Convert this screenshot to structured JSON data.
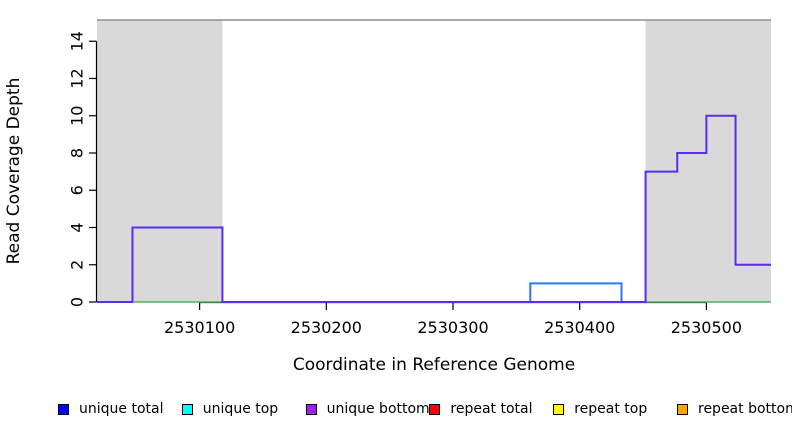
{
  "chart_data": {
    "type": "line",
    "subtype": "step-coverage",
    "title": "",
    "xlabel": "Coordinate in Reference Genome",
    "ylabel": "Read Coverage Depth",
    "xlim": [
      2530019,
      2530551
    ],
    "ylim": [
      0,
      15.14
    ],
    "x_ticks": [
      2530100,
      2530200,
      2530300,
      2530400,
      2530500
    ],
    "y_ticks": [
      0,
      2,
      4,
      6,
      8,
      10,
      12,
      14
    ],
    "grid": "off",
    "background_color": "#ffffff",
    "shaded_region_color": "#d9d9d9",
    "plot_box_top_color": "#909090",
    "shaded_regions": [
      {
        "from": 2530019,
        "to": 2530118
      },
      {
        "from": 2530452,
        "to": 2530551
      }
    ],
    "series": [
      {
        "name": "zero-depth baseline (green)",
        "display_color": "#55b060",
        "stroke_width": 1.6,
        "drop_ends": false,
        "segments": [
          {
            "from": 2530048,
            "to": 2530118,
            "depth": 0
          },
          {
            "from": 2530452,
            "to": 2530551,
            "depth": 0
          }
        ]
      },
      {
        "name": "repeat total",
        "display_color": "#e04a55",
        "stroke_width": 1.4,
        "drop_ends": false,
        "segments": [
          {
            "from": 2530357,
            "to": 2530452,
            "depth": 0
          }
        ]
      },
      {
        "name": "unique total",
        "display_color": "#2979f2",
        "stroke_width": 2,
        "drop_ends": true,
        "segments": [
          {
            "from": 2530361,
            "to": 2530433,
            "depth": 1
          }
        ]
      },
      {
        "name": "unique bottom",
        "display_color": "#5b2bee",
        "stroke_width": 2,
        "drop_ends": false,
        "segments": [
          {
            "from": 2530019,
            "to": 2530047,
            "depth": 0
          },
          {
            "from": 2530047,
            "to": 2530118,
            "depth": 4
          },
          {
            "from": 2530118,
            "to": 2530452,
            "depth": 0
          },
          {
            "from": 2530452,
            "to": 2530477,
            "depth": 7
          },
          {
            "from": 2530477,
            "to": 2530500,
            "depth": 8
          },
          {
            "from": 2530500,
            "to": 2530523,
            "depth": 10
          },
          {
            "from": 2530523,
            "to": 2530551,
            "depth": 2
          }
        ]
      }
    ],
    "legend": [
      {
        "label": "unique total",
        "color": "#0000ff"
      },
      {
        "label": "unique top",
        "color": "#00ffff"
      },
      {
        "label": "unique bottom",
        "color": "#a020f0"
      },
      {
        "label": "repeat total",
        "color": "#ff0000"
      },
      {
        "label": "repeat top",
        "color": "#ffff00"
      },
      {
        "label": "repeat bottom",
        "color": "#ffa500"
      }
    ],
    "legend_position": "bottom"
  }
}
